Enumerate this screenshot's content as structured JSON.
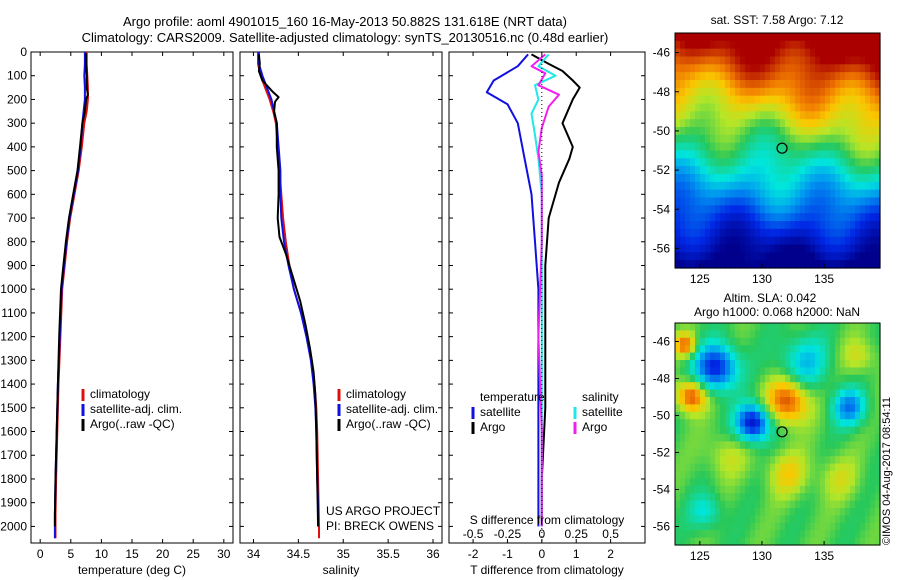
{
  "title_line1": "Argo profile: aoml 4901015_160 16-May-2013 50.882S 131.618E (NRT data)",
  "title_line2": "Climatology: CARS2009. Satellite-adjusted climatology: synTS_20130516.nc (0.48d earlier)",
  "credit": "©IMOS 04-Aug-2017 08:54:11",
  "colors": {
    "climatology": "#e01010",
    "satellite": "#1010e0",
    "argo": "#000000",
    "sal_satellite": "#20e8e8",
    "sal_argo": "#f020f0"
  },
  "chart_data": [
    {
      "type": "line",
      "name": "temperature-panel",
      "xlabel": "temperature (deg C)",
      "ylabel": "",
      "xlim": [
        -1.5,
        31.5
      ],
      "ylim": [
        2070,
        0
      ],
      "xticks": [
        "0",
        "5",
        "10",
        "15",
        "20",
        "25",
        "30"
      ],
      "xtick_values": [
        0,
        5,
        10,
        15,
        20,
        25,
        30
      ],
      "yticks": [
        "0",
        "100",
        "200",
        "300",
        "400",
        "500",
        "600",
        "700",
        "800",
        "900",
        "1000",
        "1100",
        "1200",
        "1300",
        "1400",
        "1500",
        "1600",
        "1700",
        "1800",
        "1900",
        "2000"
      ],
      "ytick_values": [
        0,
        100,
        200,
        300,
        400,
        500,
        600,
        700,
        800,
        900,
        1000,
        1100,
        1200,
        1300,
        1400,
        1500,
        1600,
        1700,
        1800,
        1900,
        2000
      ],
      "legend": [
        "climatology",
        "satellite-adj. clim.",
        "Argo(..raw -QC)"
      ],
      "series": [
        {
          "name": "climatology",
          "color": "#e01010",
          "points": [
            [
              7.6,
              0
            ],
            [
              7.6,
              50
            ],
            [
              7.7,
              100
            ],
            [
              7.8,
              150
            ],
            [
              7.8,
              200
            ],
            [
              7.6,
              250
            ],
            [
              7.2,
              300
            ],
            [
              6.8,
              400
            ],
            [
              6.3,
              500
            ],
            [
              5.6,
              600
            ],
            [
              4.9,
              700
            ],
            [
              4.4,
              800
            ],
            [
              4.0,
              900
            ],
            [
              3.6,
              1000
            ],
            [
              3.3,
              1200
            ],
            [
              3.0,
              1400
            ],
            [
              2.8,
              1600
            ],
            [
              2.6,
              1800
            ],
            [
              2.5,
              1950
            ],
            [
              2.5,
              2050
            ]
          ]
        },
        {
          "name": "satellite-adj. clim.",
          "color": "#1010e0",
          "points": [
            [
              7.3,
              0
            ],
            [
              7.3,
              50
            ],
            [
              7.2,
              100
            ],
            [
              7.3,
              150
            ],
            [
              7.3,
              200
            ],
            [
              7.1,
              250
            ],
            [
              6.9,
              300
            ],
            [
              6.6,
              400
            ],
            [
              6.2,
              500
            ],
            [
              5.5,
              600
            ],
            [
              4.8,
              700
            ],
            [
              4.3,
              800
            ],
            [
              3.9,
              900
            ],
            [
              3.5,
              1000
            ],
            [
              3.2,
              1200
            ],
            [
              2.9,
              1400
            ],
            [
              2.7,
              1600
            ],
            [
              2.5,
              1800
            ],
            [
              2.4,
              1950
            ],
            [
              2.4,
              2050
            ]
          ]
        },
        {
          "name": "Argo(..raw -QC)",
          "color": "#000000",
          "points": [
            [
              7.5,
              5
            ],
            [
              7.5,
              50
            ],
            [
              7.6,
              100
            ],
            [
              7.6,
              150
            ],
            [
              7.8,
              180
            ],
            [
              7.5,
              200
            ],
            [
              7.3,
              250
            ],
            [
              6.9,
              300
            ],
            [
              6.5,
              400
            ],
            [
              6.1,
              500
            ],
            [
              5.4,
              600
            ],
            [
              4.7,
              700
            ],
            [
              4.2,
              800
            ],
            [
              3.8,
              900
            ],
            [
              3.4,
              1000
            ],
            [
              3.1,
              1200
            ],
            [
              2.9,
              1400
            ],
            [
              2.7,
              1600
            ],
            [
              2.5,
              1800
            ],
            [
              2.4,
              1950
            ],
            [
              2.4,
              2000
            ]
          ]
        }
      ]
    },
    {
      "type": "line",
      "name": "salinity-panel",
      "xlabel": "salinity",
      "ylabel": "",
      "xlim": [
        33.85,
        36.1
      ],
      "ylim": [
        2070,
        0
      ],
      "xticks": [
        "34",
        "34.5",
        "35",
        "35.5",
        "36"
      ],
      "xtick_values": [
        34,
        34.5,
        35,
        35.5,
        36
      ],
      "legend": [
        "climatology",
        "satellite-adj. clim.",
        "Argo(..raw -QC)"
      ],
      "annotations": [
        "US ARGO PROJECT",
        "PI: BRECK OWENS"
      ],
      "series": [
        {
          "name": "climatology",
          "color": "#e01010",
          "points": [
            [
              34.05,
              0
            ],
            [
              34.05,
              50
            ],
            [
              34.08,
              100
            ],
            [
              34.13,
              150
            ],
            [
              34.18,
              200
            ],
            [
              34.22,
              250
            ],
            [
              34.25,
              300
            ],
            [
              34.27,
              400
            ],
            [
              34.29,
              500
            ],
            [
              34.31,
              600
            ],
            [
              34.33,
              700
            ],
            [
              34.36,
              800
            ],
            [
              34.4,
              900
            ],
            [
              34.45,
              1000
            ],
            [
              34.53,
              1100
            ],
            [
              34.6,
              1200
            ],
            [
              34.65,
              1300
            ],
            [
              34.68,
              1400
            ],
            [
              34.7,
              1500
            ],
            [
              34.71,
              1600
            ],
            [
              34.72,
              1800
            ],
            [
              34.73,
              2000
            ],
            [
              34.73,
              2050
            ]
          ]
        },
        {
          "name": "satellite-adj. clim.",
          "color": "#1010e0",
          "points": [
            [
              34.06,
              0
            ],
            [
              34.06,
              50
            ],
            [
              34.1,
              100
            ],
            [
              34.15,
              150
            ],
            [
              34.2,
              200
            ],
            [
              34.23,
              250
            ],
            [
              34.26,
              300
            ],
            [
              34.28,
              400
            ],
            [
              34.3,
              500
            ],
            [
              34.3,
              600
            ],
            [
              34.31,
              700
            ],
            [
              34.34,
              800
            ],
            [
              34.39,
              900
            ],
            [
              34.45,
              1000
            ],
            [
              34.53,
              1100
            ],
            [
              34.59,
              1200
            ],
            [
              34.64,
              1300
            ],
            [
              34.67,
              1400
            ],
            [
              34.69,
              1500
            ],
            [
              34.7,
              1600
            ],
            [
              34.71,
              1800
            ],
            [
              34.72,
              1900
            ],
            [
              34.72,
              2000
            ]
          ]
        },
        {
          "name": "Argo(..raw -QC)",
          "color": "#000000",
          "points": [
            [
              34.06,
              10
            ],
            [
              34.07,
              50
            ],
            [
              34.06,
              80
            ],
            [
              34.1,
              120
            ],
            [
              34.22,
              170
            ],
            [
              34.28,
              190
            ],
            [
              34.24,
              210
            ],
            [
              34.23,
              250
            ],
            [
              34.26,
              300
            ],
            [
              34.26,
              400
            ],
            [
              34.28,
              500
            ],
            [
              34.28,
              600
            ],
            [
              34.27,
              700
            ],
            [
              34.29,
              780
            ],
            [
              34.36,
              850
            ],
            [
              34.44,
              950
            ],
            [
              34.52,
              1050
            ],
            [
              34.58,
              1150
            ],
            [
              34.63,
              1250
            ],
            [
              34.67,
              1350
            ],
            [
              34.69,
              1450
            ],
            [
              34.7,
              1600
            ],
            [
              34.71,
              1800
            ],
            [
              34.72,
              2000
            ]
          ]
        }
      ]
    },
    {
      "type": "line",
      "name": "difference-panel",
      "xlabel": "T difference from climatology",
      "xlabel2": "S difference from climatology",
      "ylabel": "",
      "xlim": [
        -2.7,
        3.0
      ],
      "ylim": [
        2070,
        0
      ],
      "xticks": [
        "-2",
        "-1",
        "0",
        "1",
        "2"
      ],
      "xtick_values": [
        -2,
        -1,
        0,
        1,
        2
      ],
      "xticks2": [
        "-0.5",
        "-0.25",
        "0",
        "0.25",
        "0.5"
      ],
      "xtick2_values": [
        -2,
        -1,
        0,
        1,
        2
      ],
      "legend_temperature": {
        "title": "temperature",
        "items": [
          "satellite",
          "Argo"
        ]
      },
      "legend_salinity": {
        "title": "salinity",
        "items": [
          "satellite",
          "Argo"
        ]
      },
      "series": [
        {
          "name": "temperature satellite",
          "color": "#1010e0",
          "points": [
            [
              -0.4,
              10
            ],
            [
              -0.7,
              60
            ],
            [
              -1.4,
              120
            ],
            [
              -1.6,
              170
            ],
            [
              -1.0,
              220
            ],
            [
              -0.7,
              300
            ],
            [
              -0.5,
              450
            ],
            [
              -0.3,
              600
            ],
            [
              -0.2,
              800
            ],
            [
              -0.1,
              1000
            ],
            [
              -0.1,
              1400
            ],
            [
              -0.1,
              1800
            ],
            [
              -0.1,
              2000
            ]
          ]
        },
        {
          "name": "temperature Argo",
          "color": "#000000",
          "points": [
            [
              -0.3,
              10
            ],
            [
              0.2,
              50
            ],
            [
              0.6,
              80
            ],
            [
              0.9,
              120
            ],
            [
              1.1,
              150
            ],
            [
              0.9,
              200
            ],
            [
              0.6,
              300
            ],
            [
              0.9,
              400
            ],
            [
              0.8,
              450
            ],
            [
              0.5,
              550
            ],
            [
              0.2,
              700
            ],
            [
              0.1,
              900
            ],
            [
              0.1,
              1200
            ],
            [
              0.1,
              1500
            ],
            [
              0.0,
              1800
            ],
            [
              0.0,
              2000
            ]
          ]
        },
        {
          "name": "salinity satellite",
          "color": "#20e8e8",
          "points": [
            [
              0.2,
              10
            ],
            [
              -0.1,
              60
            ],
            [
              0.4,
              100
            ],
            [
              -0.2,
              140
            ],
            [
              -0.1,
              200
            ],
            [
              -0.3,
              260
            ],
            [
              -0.2,
              350
            ],
            [
              -0.1,
              450
            ],
            [
              0.0,
              600
            ],
            [
              0.0,
              800
            ],
            [
              0.0,
              1000
            ],
            [
              0.0,
              1400
            ],
            [
              0.0,
              1800
            ],
            [
              0.0,
              2000
            ]
          ]
        },
        {
          "name": "salinity Argo",
          "color": "#f020f0",
          "points": [
            [
              0.1,
              10
            ],
            [
              -0.3,
              60
            ],
            [
              0.1,
              90
            ],
            [
              -0.1,
              140
            ],
            [
              0.5,
              180
            ],
            [
              0.2,
              230
            ],
            [
              0.0,
              320
            ],
            [
              -0.1,
              420
            ],
            [
              0.0,
              520
            ],
            [
              0.0,
              800
            ],
            [
              -0.1,
              1200
            ],
            [
              0.0,
              1600
            ],
            [
              0.0,
              2000
            ]
          ]
        }
      ]
    },
    {
      "type": "heatmap",
      "name": "sst-map",
      "title": "sat. SST: 7.58  Argo: 7.12",
      "xlim": [
        123,
        139.5
      ],
      "ylim": [
        -57,
        -45
      ],
      "xticks": [
        "125",
        "130",
        "135"
      ],
      "xtick_values": [
        125,
        130,
        135
      ],
      "yticks": [
        "-46",
        "-48",
        "-50",
        "-52",
        "-54",
        "-56"
      ],
      "ytick_values": [
        -46,
        -48,
        -50,
        -52,
        -54,
        -56
      ],
      "marker": [
        131.618,
        -50.882
      ]
    },
    {
      "type": "heatmap",
      "name": "sla-map",
      "title": "Altim. SLA: 0.042",
      "subtitle": "Argo h1000: 0.068 h2000: NaN",
      "xlim": [
        123,
        139.5
      ],
      "ylim": [
        -57,
        -45
      ],
      "xticks": [
        "125",
        "130",
        "135"
      ],
      "xtick_values": [
        125,
        130,
        135
      ],
      "yticks": [
        "-46",
        "-48",
        "-50",
        "-52",
        "-54",
        "-56"
      ],
      "ytick_values": [
        -46,
        -48,
        -50,
        -52,
        -54,
        -56
      ],
      "marker": [
        131.618,
        -50.882
      ]
    }
  ]
}
